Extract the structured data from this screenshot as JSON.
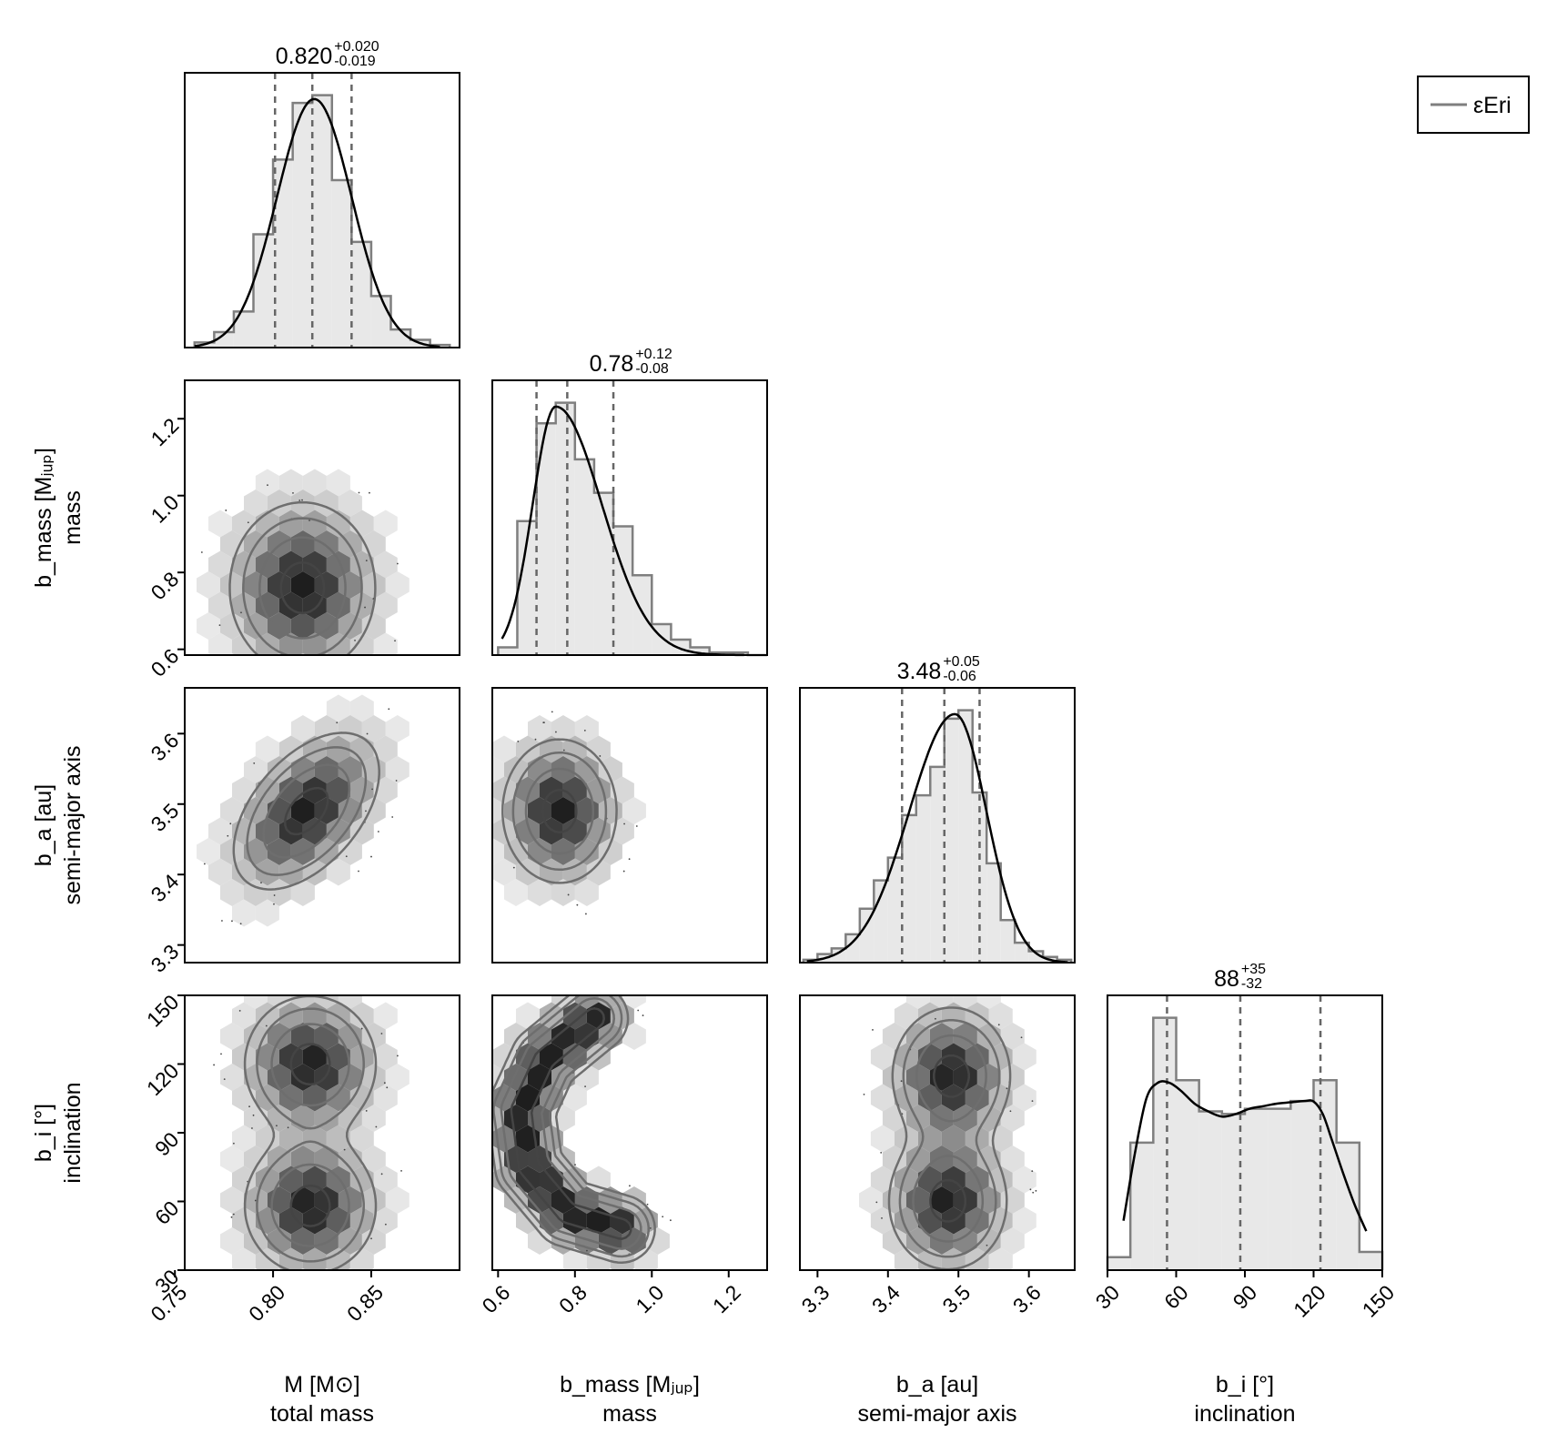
{
  "chart_data": {
    "type": "corner",
    "series": [
      {
        "name": "εEri",
        "color": "#7f7f7f"
      }
    ],
    "legend": {
      "position": "top-right"
    },
    "grid": false,
    "parameters": [
      {
        "key": "M",
        "label": "M [M⊙]",
        "sublabel": "total mass",
        "range": [
          0.755,
          0.895
        ],
        "ticks": [
          "0.75",
          "0.80",
          "0.85"
        ],
        "median": 0.82,
        "q_low": 0.801,
        "q_high": 0.84,
        "stat": {
          "main": "0.820",
          "plus": "+0.020",
          "minus": "-0.019"
        },
        "hist": {
          "edges": [
            0.76,
            0.77,
            0.78,
            0.79,
            0.8,
            0.81,
            0.82,
            0.83,
            0.84,
            0.85,
            0.86,
            0.87,
            0.88,
            0.89
          ],
          "counts": [
            0.02,
            0.06,
            0.14,
            0.44,
            0.73,
            0.95,
            0.98,
            0.65,
            0.41,
            0.2,
            0.07,
            0.03,
            0.01
          ]
        },
        "kde": {
          "mean": 0.821,
          "sd": 0.019,
          "xmin": 0.76,
          "xmax": 0.885
        }
      },
      {
        "key": "b_mass",
        "label": "b_mass [Mⱼᵤₚ]",
        "sublabel": "mass",
        "range": [
          0.585,
          1.3
        ],
        "ticks": [
          "0.6",
          "0.8",
          "1.0",
          "1.2"
        ],
        "median": 0.78,
        "q_low": 0.7,
        "q_high": 0.9,
        "stat": {
          "main": "0.78",
          "plus": "+0.12",
          "minus": "-0.08"
        },
        "hist": {
          "edges": [
            0.6,
            0.65,
            0.7,
            0.75,
            0.8,
            0.85,
            0.9,
            0.95,
            1.0,
            1.05,
            1.1,
            1.15,
            1.2,
            1.25,
            1.3
          ],
          "counts": [
            0.03,
            0.52,
            0.9,
            0.98,
            0.76,
            0.63,
            0.5,
            0.31,
            0.12,
            0.06,
            0.03,
            0.01,
            0.01,
            0.0
          ]
        },
        "kde": {
          "mode": 0.75,
          "sd_left": 0.06,
          "sd_right": 0.12,
          "xmin": 0.61,
          "xmax": 1.24
        }
      },
      {
        "key": "b_a",
        "label": "b_a [au]",
        "sublabel": "semi-major axis",
        "range": [
          3.275,
          3.665
        ],
        "ticks": [
          "3.3",
          "3.4",
          "3.5",
          "3.6"
        ],
        "median": 3.48,
        "q_low": 3.42,
        "q_high": 3.53,
        "stat": {
          "main": "3.48",
          "plus": "+0.05",
          "minus": "-0.06"
        },
        "hist": {
          "edges": [
            3.28,
            3.3,
            3.32,
            3.34,
            3.36,
            3.38,
            3.4,
            3.42,
            3.44,
            3.46,
            3.48,
            3.5,
            3.52,
            3.54,
            3.56,
            3.58,
            3.6,
            3.62,
            3.64,
            3.66
          ],
          "counts": [
            0.01,
            0.03,
            0.05,
            0.1,
            0.19,
            0.29,
            0.37,
            0.52,
            0.59,
            0.69,
            0.86,
            0.89,
            0.6,
            0.35,
            0.15,
            0.07,
            0.04,
            0.02,
            0.01
          ]
        },
        "kde": {
          "mode": 3.495,
          "sd_left": 0.065,
          "sd_right": 0.045,
          "xmin": 3.285,
          "xmax": 3.655
        }
      },
      {
        "key": "b_i",
        "label": "b_i [°]",
        "sublabel": "inclination",
        "range": [
          30,
          150
        ],
        "ticks": [
          "30",
          "60",
          "90",
          "120",
          "150"
        ],
        "median": 88,
        "q_low": 56,
        "q_high": 123,
        "stat": {
          "main": "88",
          "plus": "+35",
          "minus": "-32"
        },
        "hist": {
          "edges": [
            30,
            40,
            50,
            60,
            70,
            80,
            90,
            100,
            110,
            120,
            130,
            140,
            150
          ],
          "counts": [
            0.05,
            0.49,
            0.97,
            0.73,
            0.61,
            0.6,
            0.62,
            0.62,
            0.65,
            0.73,
            0.49,
            0.07
          ]
        },
        "kde": {
          "points": [
            [
              37,
              0.19
            ],
            [
              42,
              0.45
            ],
            [
              47,
              0.66
            ],
            [
              52,
              0.72
            ],
            [
              57,
              0.72
            ],
            [
              62,
              0.69
            ],
            [
              68,
              0.64
            ],
            [
              74,
              0.61
            ],
            [
              80,
              0.59
            ],
            [
              86,
              0.6
            ],
            [
              92,
              0.62
            ],
            [
              98,
              0.63
            ],
            [
              104,
              0.64
            ],
            [
              110,
              0.645
            ],
            [
              116,
              0.65
            ],
            [
              120,
              0.648
            ],
            [
              124,
              0.6
            ],
            [
              128,
              0.5
            ],
            [
              133,
              0.37
            ],
            [
              138,
              0.25
            ],
            [
              143,
              0.15
            ]
          ]
        }
      }
    ],
    "pairs": [
      {
        "x": "M",
        "y": "b_mass",
        "centers": [
          [
            0.815,
            0.76
          ]
        ],
        "spreads": [
          [
            0.02,
            0.12
          ]
        ]
      },
      {
        "x": "M",
        "y": "b_a",
        "centers": [
          [
            0.817,
            3.49
          ]
        ],
        "spreads": [
          [
            0.02,
            0.06
          ]
        ],
        "correlation": 0.5
      },
      {
        "x": "b_mass",
        "y": "b_a",
        "centers": [
          [
            0.76,
            3.49
          ]
        ],
        "spreads": [
          [
            0.08,
            0.055
          ]
        ]
      },
      {
        "x": "M",
        "y": "b_i",
        "centers": [
          [
            0.819,
            58
          ],
          [
            0.819,
            120
          ]
        ],
        "spreads": [
          [
            0.018,
            16
          ],
          [
            0.018,
            16
          ]
        ]
      },
      {
        "x": "b_mass",
        "y": "b_i",
        "shape": "arc",
        "arc_points": [
          [
            0.92,
            48
          ],
          [
            0.78,
            55
          ],
          [
            0.68,
            75
          ],
          [
            0.66,
            100
          ],
          [
            0.72,
            122
          ],
          [
            0.85,
            140
          ]
        ]
      },
      {
        "x": "b_a",
        "y": "b_i",
        "centers": [
          [
            3.485,
            60
          ],
          [
            3.49,
            115
          ]
        ],
        "spreads": [
          [
            0.045,
            16
          ],
          [
            0.045,
            16
          ]
        ]
      }
    ]
  }
}
